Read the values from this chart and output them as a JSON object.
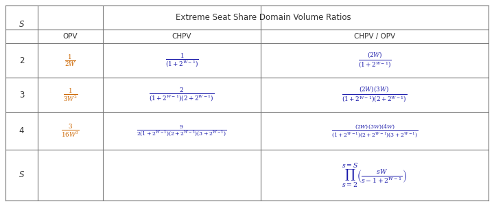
{
  "title": "Extreme Seat Share Domain Volume Ratios",
  "col_headers": [
    "OPV",
    "CHPV",
    "CHPV / OPV"
  ],
  "row_labels": [
    "2",
    "3",
    "4",
    "S"
  ],
  "s_label": "S",
  "background": "#ffffff",
  "border_color": "#777777",
  "text_color_normal": "#333333",
  "text_color_formula": "#1a1aaa",
  "text_color_orange": "#cc6600",
  "formulas": {
    "opv": [
      "\\frac{1}{2W}",
      "\\frac{1}{3W^2}",
      "\\frac{3}{16W^3}",
      ""
    ],
    "chpv": [
      "\\frac{1}{(1+2^{W-1})}",
      "\\frac{2}{(1+2^{W-1})(2+2^{W-1})}",
      "\\frac{9}{2(1+2^{W-1})(2+2^{W-1})(3+2^{W-1})}",
      ""
    ],
    "ratio": [
      "\\frac{(2W)}{(1+2^{W-1})}",
      "\\frac{(2W)(3W)}{(1+2^{W-1})(2+2^{W-1})}",
      "\\frac{(2W)(3W)(4W)}{(1+2^{W-1})(2+2^{W-1})(3+2^{W-1})}",
      "\\prod_{s=2}^{s=S}\\left(\\frac{sW}{s-1+2^{W-1}}\\right)"
    ]
  },
  "figsize": [
    7.2,
    3.0
  ],
  "dpi": 100
}
